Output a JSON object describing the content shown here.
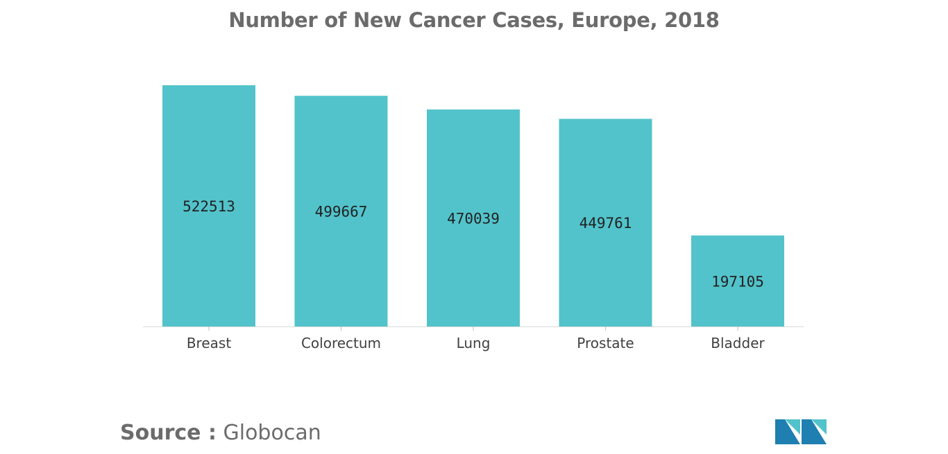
{
  "chart_data": {
    "type": "bar",
    "title": "Number of New Cancer Cases, Europe, 2018",
    "categories": [
      "Breast",
      "Colorectum",
      "Lung",
      "Prostate",
      "Bladder"
    ],
    "values": [
      522513,
      499667,
      470039,
      449761,
      197105
    ],
    "data_labels": [
      "522513",
      "499667",
      "470039",
      "449761",
      "197105"
    ],
    "xlabel": "",
    "ylabel": "",
    "ylim": [
      0,
      522513
    ],
    "grid": false,
    "legend": "none",
    "bar_color": "#52c3cb"
  },
  "source": {
    "label": "Source :",
    "value": "Globocan"
  },
  "logo": {
    "colors": [
      "#1e7fb0",
      "#52c3cb"
    ]
  }
}
